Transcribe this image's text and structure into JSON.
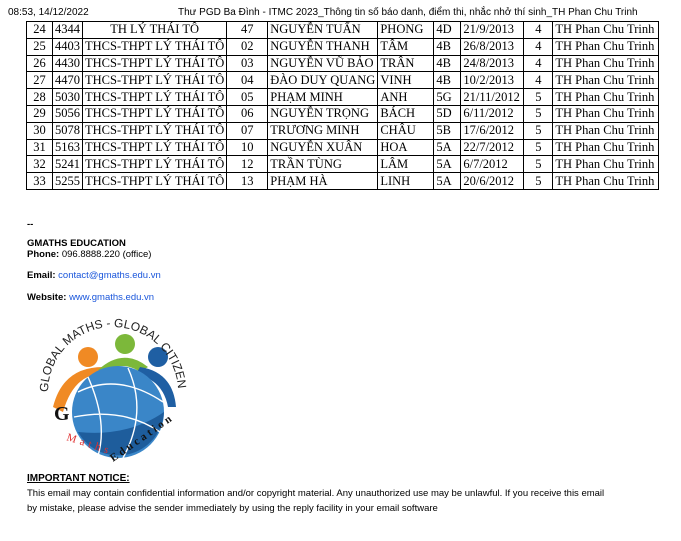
{
  "header": {
    "time": "08:53, 14/12/2022",
    "title": "Thư PGD Ba Đình - ITMC 2023_Thông tin số báo danh, điểm thi, nhắc nhở thí sinh_TH Phan Chu Trinh"
  },
  "table": {
    "rows": [
      [
        "24",
        "4344",
        "TH LÝ THÁI TÔ",
        "47",
        "NGUYỄN TUẤN",
        "PHONG",
        "4D",
        "21/9/2013",
        "4",
        "TH Phan Chu Trinh"
      ],
      [
        "25",
        "4403",
        "THCS-THPT LÝ THÁI TÔ",
        "02",
        "NGUYỄN THANH",
        "TÂM",
        "4B",
        "26/8/2013",
        "4",
        "TH Phan Chu Trinh"
      ],
      [
        "26",
        "4430",
        "THCS-THPT LÝ THÁI TÔ",
        "03",
        "NGUYỄN VŨ BẢO",
        "TRÂN",
        "4B",
        "24/8/2013",
        "4",
        "TH Phan Chu Trinh"
      ],
      [
        "27",
        "4470",
        "THCS-THPT LÝ THÁI TÔ",
        "04",
        "ĐÀO DUY QUANG",
        "VINH",
        "4B",
        "10/2/2013",
        "4",
        "TH Phan Chu Trinh"
      ],
      [
        "28",
        "5030",
        "THCS-THPT LÝ THÁI TÔ",
        "05",
        "PHẠM MINH",
        "ANH",
        "5G",
        "21/11/2012",
        "5",
        "TH Phan Chu Trinh"
      ],
      [
        "29",
        "5056",
        "THCS-THPT LÝ THÁI TÔ",
        "06",
        "NGUYỄN TRỌNG",
        "BÁCH",
        "5D",
        "6/11/2012",
        "5",
        "TH Phan Chu Trinh"
      ],
      [
        "30",
        "5078",
        "THCS-THPT LÝ THÁI TÔ",
        "07",
        "TRƯƠNG MINH",
        "CHÂU",
        "5B",
        "17/6/2012",
        "5",
        "TH Phan Chu Trinh"
      ],
      [
        "31",
        "5163",
        "THCS-THPT LÝ THÁI TÔ",
        "10",
        "NGUYỄN XUÂN",
        "HOA",
        "5A",
        "22/7/2012",
        "5",
        "TH Phan Chu Trinh"
      ],
      [
        "32",
        "5241",
        "THCS-THPT LÝ THÁI TÔ",
        "12",
        "TRẦN TÙNG",
        "LÂM",
        "5A",
        "6/7/2012",
        "5",
        "TH Phan Chu Trinh"
      ],
      [
        "33",
        "5255",
        "THCS-THPT LÝ THÁI TÔ",
        "13",
        "PHẠM HÀ",
        "LINH",
        "5A",
        "20/6/2012",
        "5",
        "TH Phan Chu Trinh"
      ]
    ]
  },
  "signature": {
    "separator": "--",
    "company": "GMATHS  EDUCATION",
    "phone_label": "Phone:",
    "phone": " 096.8888.220 (office)",
    "email_label": "Email:",
    "email": "contact@gmaths.edu.vn",
    "website_label": "Website:",
    "website": "www.gmaths.edu.vn",
    "logo_text": {
      "top": "GLOBAL MATHS - GLOBAL CITIZEN",
      "bottom_g": "G",
      "bottom_maths": "Maths",
      "bottom_edu": "Education"
    },
    "link_color": "#1a56db"
  },
  "notice": {
    "title": "IMPORTANT NOTICE:",
    "line1": "This email may contain confidential information and/or copyright material. Any unauthorized use may be unlawful. If you receive this email",
    "line2": "by mistake, please advise the sender immediately by using the reply facility in your email software"
  }
}
